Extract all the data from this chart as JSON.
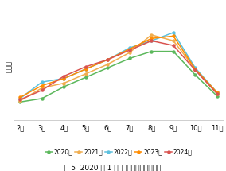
{
  "title": "图 5  2020 年 1 月以来水产饲料产量变化",
  "ylabel": "，万吨",
  "x_labels": [
    "2月",
    "3月",
    "4月",
    "5月",
    "6月",
    "7月",
    "8月",
    "9月",
    "10月",
    "11月"
  ],
  "series": {
    "2020年": {
      "values": [
        15,
        18,
        28,
        36,
        44,
        52,
        58,
        58,
        38,
        20
      ],
      "color": "#5CB85C",
      "marker": "o"
    },
    "2021年": {
      "values": [
        16,
        27,
        31,
        39,
        47,
        57,
        72,
        67,
        43,
        22
      ],
      "color": "#F0AD4E",
      "marker": "o"
    },
    "2022年": {
      "values": [
        18,
        32,
        35,
        43,
        51,
        61,
        67,
        74,
        44,
        23
      ],
      "color": "#5BC0DE",
      "marker": "o"
    },
    "2023年": {
      "values": [
        19,
        29,
        35,
        43,
        51,
        60,
        69,
        71,
        43,
        23
      ],
      "color": "#FF8C00",
      "marker": "o"
    },
    "2024年": {
      "values": [
        17,
        25,
        37,
        45,
        51,
        59,
        67,
        63,
        42,
        22
      ],
      "color": "#D9534F",
      "marker": "o"
    }
  },
  "ylim_min": 0,
  "ylim_max": 90,
  "background_color": "#ffffff",
  "grid_color": "#d0d0d0",
  "legend_order": [
    "2020年",
    "2021年",
    "2022年",
    "2023年",
    "2024年"
  ],
  "title_fontsize": 6.5,
  "tick_fontsize": 6,
  "legend_fontsize": 5.5
}
